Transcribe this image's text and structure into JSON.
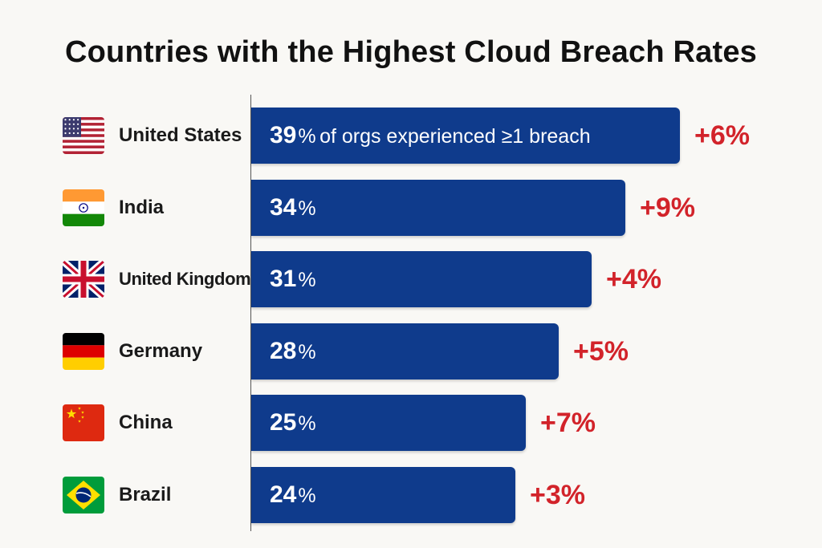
{
  "chart_data": {
    "type": "bar",
    "orientation": "horizontal",
    "title": "Countries with the Highest Cloud Breach Rates",
    "xlabel": "",
    "ylabel": "",
    "xlim": [
      0,
      50
    ],
    "grid": false,
    "unit": "%",
    "value_note": "of orgs experienced ≥1 breach",
    "categories": [
      "United States",
      "India",
      "United Kingdom",
      "Germany",
      "China",
      "Brazil"
    ],
    "values": [
      39,
      34,
      31,
      28,
      25,
      24
    ],
    "changes": [
      "+6%",
      "+9%",
      "+4%",
      "+5%",
      "+7%",
      "+3%"
    ],
    "flags": [
      "us-flag",
      "india-flag",
      "uk-flag",
      "germany-flag",
      "china-flag",
      "brazil-flag"
    ]
  },
  "colors": {
    "bar": "#0f3b8c",
    "change": "#d2232a",
    "label": "#ffffff",
    "text": "#1a1a1a"
  }
}
